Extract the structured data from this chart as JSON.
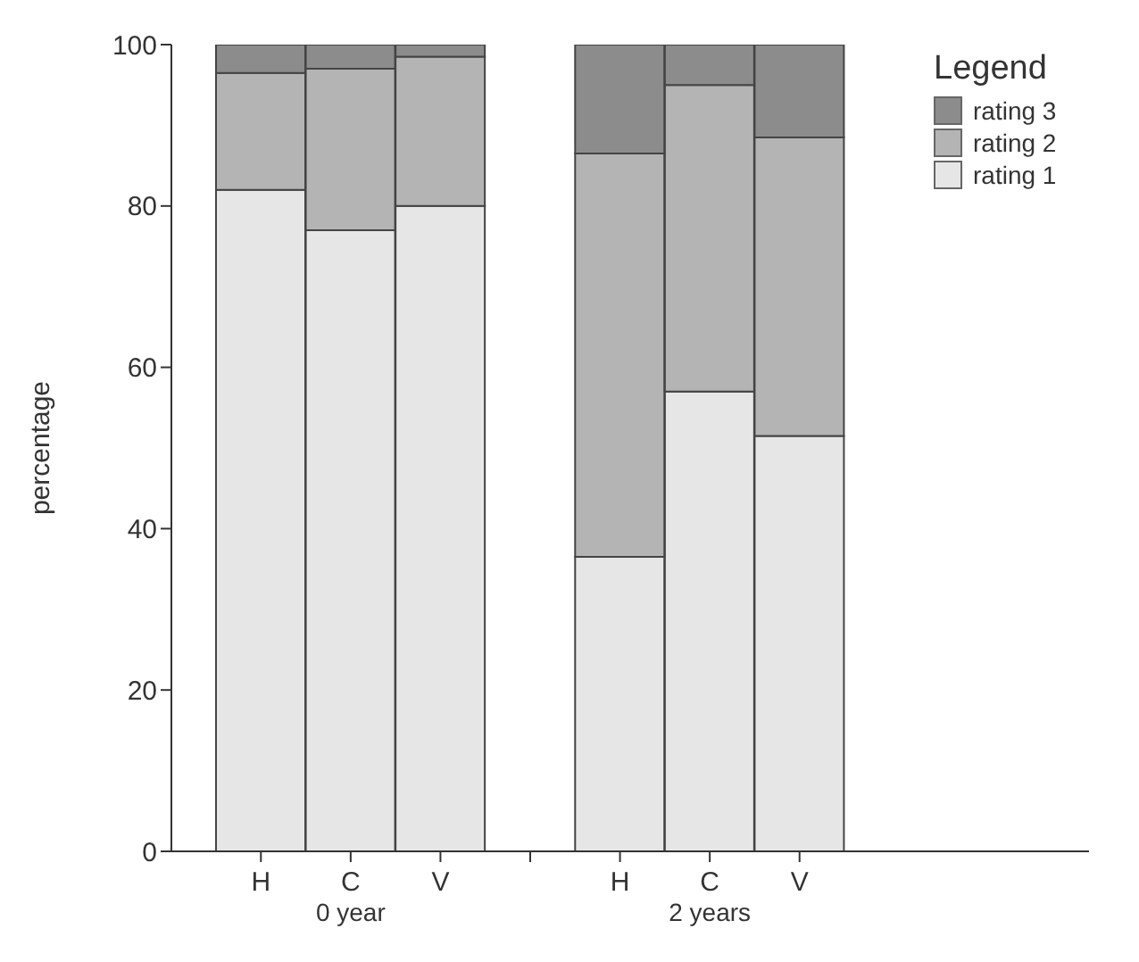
{
  "chart_data": {
    "type": "bar",
    "stacked": true,
    "ylabel": "percentage",
    "legend_title": "Legend",
    "legend": "top right",
    "categories": [
      "H",
      "C",
      "V",
      null,
      "H",
      "C",
      "V"
    ],
    "series": [
      {
        "name": "rating 1",
        "color": "#e6e6e6",
        "values": [
          82,
          77,
          80,
          null,
          36.5,
          57,
          51.5
        ]
      },
      {
        "name": "rating 2",
        "color": "#b4b4b4",
        "values": [
          14.5,
          20,
          18.5,
          null,
          50,
          38,
          37
        ]
      },
      {
        "name": "rating 3",
        "color": "#8c8c8c",
        "values": [
          3.5,
          3,
          1.5,
          null,
          13.5,
          5,
          11.5
        ]
      }
    ],
    "ylim": [
      0,
      100
    ],
    "yticks": [
      0,
      20,
      40,
      60,
      80,
      100
    ],
    "annotations": [
      "0 year",
      "2 years"
    ]
  }
}
